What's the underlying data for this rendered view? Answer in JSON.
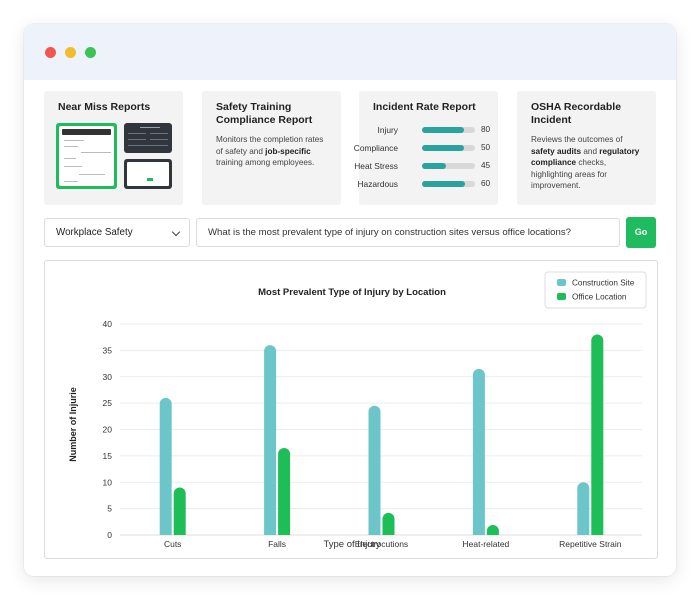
{
  "cards": {
    "near_miss": {
      "title": "Near Miss Reports"
    },
    "training": {
      "title": "Safety Training Compliance Report",
      "desc_1": "Monitors the completion rates of safety and ",
      "desc_bold": "job-specific",
      "desc_2": " training among employees."
    },
    "incident": {
      "title": "Incident Rate Report",
      "rows": [
        {
          "label": "Injury",
          "value": "80",
          "fraction": 0.8
        },
        {
          "label": "Compliance",
          "value": "50",
          "fraction": 0.8
        },
        {
          "label": "Heat Stress",
          "value": "45",
          "fraction": 0.45
        },
        {
          "label": "Hazardous",
          "value": "60",
          "fraction": 0.82
        }
      ]
    },
    "osha": {
      "title": "OSHA Recordable Incident",
      "desc_1": "Reviews the outcomes of ",
      "desc_bold_1": "safety audits",
      "desc_2": " and ",
      "desc_bold_2": "regulatory compliance",
      "desc_3": " checks, highlighting areas for improvement."
    }
  },
  "controls": {
    "category_select": "Workplace Safety",
    "query": "What is the most prevalent type of injury on construction sites versus office locations?",
    "go_label": "Go"
  },
  "colors": {
    "construction": "#6cc5c9",
    "office": "#1dbd58",
    "accent": "#1ebc5e",
    "bar_fill": "#2aa39e"
  },
  "chart_data": {
    "type": "bar",
    "title": "Most Prevalent Type of Injury by Location",
    "xlabel": "Type of Injury",
    "ylabel": "Number of Injurie",
    "categories": [
      "Cuts",
      "Falls",
      "Electrocutions",
      "Heat-related",
      "Repetitive Strain"
    ],
    "series": [
      {
        "name": "Construction Site",
        "values": [
          26,
          36,
          24.5,
          31.5,
          10
        ]
      },
      {
        "name": "Office Location",
        "values": [
          9,
          16.5,
          4.2,
          1.5,
          38
        ]
      }
    ],
    "ylim": [
      0,
      40
    ],
    "yticks": [
      "0",
      "5",
      "10",
      "15",
      "20",
      "25",
      "30",
      "35",
      "40"
    ],
    "grid": true,
    "legend_position": "top-right"
  }
}
